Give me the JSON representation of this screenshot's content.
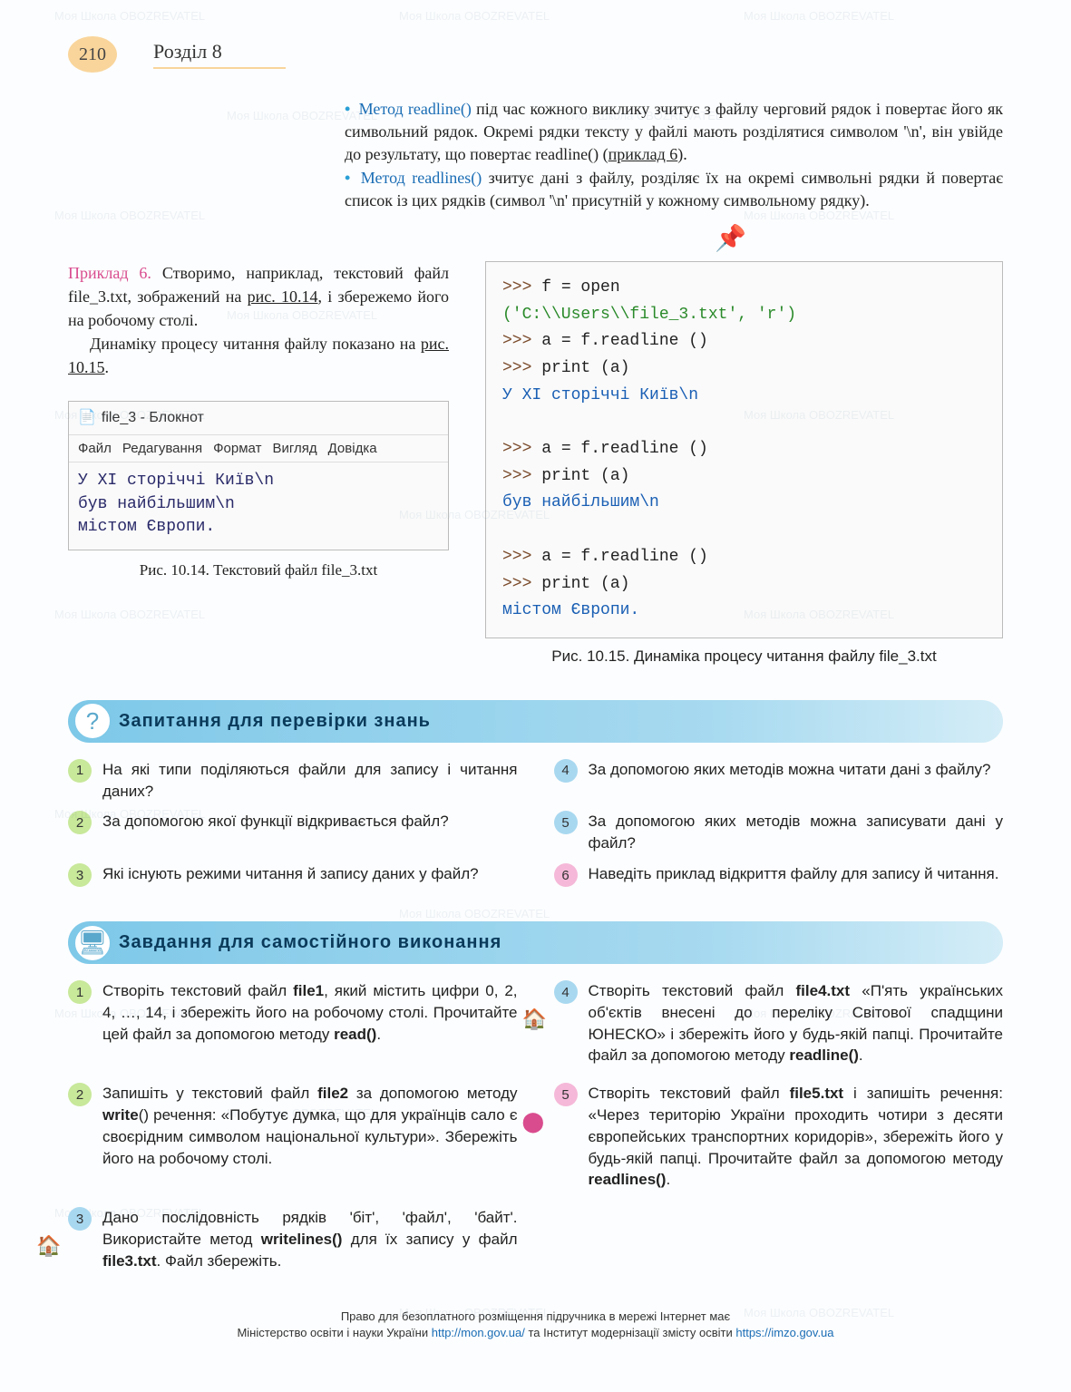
{
  "header": {
    "page_number": "210",
    "chapter": "Розділ 8"
  },
  "intro": {
    "bullet1_method": "Метод readline()",
    "bullet1_text1": " під час кожного виклику зчитує з файлу черговий рядок і повертає його як символьний рядок. Окремі рядки тексту у файлі мають розділятися символом '\\n', він увійде до результату, що повертає readline() (",
    "bullet1_link": "приклад 6",
    "bullet1_text2": ").",
    "bullet2_method": "Метод readlines()",
    "bullet2_text": " зчитує дані з файлу, розділяє їх на окремі символьні рядки й повертає список із цих рядків (символ '\\n' присутній у кожному символьному рядку)."
  },
  "example": {
    "label": "Приклад 6.",
    "text1": " Створимо, наприклад, текстовий файл file_3.txt, зображений на ",
    "link1": "рис. 10.14",
    "text2": ", і збережемо його на робочому столі.",
    "text3": "Динаміку процесу читання файлу показано на ",
    "link2": "рис. 10.15",
    "text4": "."
  },
  "notepad": {
    "title": "file_3 - Блокнот",
    "menu": [
      "Файл",
      "Редагування",
      "Формат",
      "Вигляд",
      "Довідка"
    ],
    "line1": "У ХІ сторіччі Київ\\n",
    "line2": "був найбільшим\\n",
    "line3": "містом Європи.",
    "caption": "Рис. 10.14. Текстовий файл file_3.txt"
  },
  "code": {
    "l1a": ">>> ",
    "l1b": "f = open",
    "l2": "('C:\\\\Users\\\\file_3.txt', 'r')",
    "l3a": ">>> ",
    "l3b": "a = f.readline ()",
    "l4a": ">>> ",
    "l4b": "print (a)",
    "l5": "У ХІ сторіччі Київ\\n",
    "l6a": ">>> ",
    "l6b": "a = f.readline ()",
    "l7a": ">>> ",
    "l7b": "print (a)",
    "l8": "був найбільшим\\n",
    "l9a": ">>> ",
    "l9b": "a = f.readline ()",
    "l10a": ">>> ",
    "l10b": "print (a)",
    "l11": "містом Європи.",
    "caption": "Рис. 10.15. Динаміка процесу читання файлу file_3.txt"
  },
  "questions": {
    "title": "Запитання для перевірки знань",
    "items": [
      {
        "n": "1",
        "t": "На які типи поділяються файли для запису і читання даних?"
      },
      {
        "n": "2",
        "t": "За допомогою якої функції відкривається файл?"
      },
      {
        "n": "3",
        "t": "Які існують режими читання й запису даних у файл?"
      },
      {
        "n": "4",
        "t": "За допомогою яких методів можна читати дані з файлу?"
      },
      {
        "n": "5",
        "t": "За допомогою яких методів можна записувати дані у файл?"
      },
      {
        "n": "6",
        "t": "Наведіть приклад відкриття файлу для запису й читання."
      }
    ]
  },
  "tasks": {
    "title": "Завдання для самостійного виконання",
    "items": [
      {
        "n": "1",
        "cls": "num-green",
        "html": "Створіть текстовий файл <b>file1</b>, який містить цифри 0, 2, 4, …, 14, і збережіть його на робочому столі. Прочитайте цей файл за допомогою методу <b>read()</b>."
      },
      {
        "n": "2",
        "cls": "num-green",
        "html": "Запишіть у текстовий файл <b>file2</b> за допомогою методу <b>write</b>() речення: «Побутує думка, що для українців сало є своєрідним символом національної культури». Збережіть його на робочому столі."
      },
      {
        "n": "3",
        "cls": "num-blue",
        "icon": "🏠",
        "html": "Дано послідовність рядків 'біт', 'файл', 'байт'. Використайте метод <b>writelines()</b> для їх запису у файл <b>file3.txt</b>. Файл збережіть."
      },
      {
        "n": "4",
        "cls": "num-blue",
        "icon": "🏠",
        "html": "Створіть текстовий файл <b>file4.txt</b> «П'ять українських об'єктів внесені до переліку Світової спадщини ЮНЕСКО» і збережіть його у будь-якій папці. Прочитайте файл за допомогою методу <b>readline()</b>."
      },
      {
        "n": "5",
        "cls": "num-pink",
        "icon": "⬤",
        "html": "Створіть текстовий файл <b>file5.txt</b> і запишіть речення: «Через територію України проходить чотири з десяти європейських транспортних коридорів», збережіть його у будь-якій папці. Прочитайте файл за допомогою методу <b>readlines()</b>."
      }
    ]
  },
  "footer": {
    "line1": "Право для безоплатного розміщення підручника в мережі Інтернет має",
    "line2a": "Міністерство освіти і науки України ",
    "link1": "http://mon.gov.ua/",
    "line2b": " та Інститут модернізації змісту освіти ",
    "link2": "https://imzo.gov.ua"
  },
  "colors": {
    "accent_orange": "#f9d59b",
    "method_blue": "#1a6db5",
    "example_pink": "#d94c8e",
    "bar_blue": "#7ec8e8"
  }
}
